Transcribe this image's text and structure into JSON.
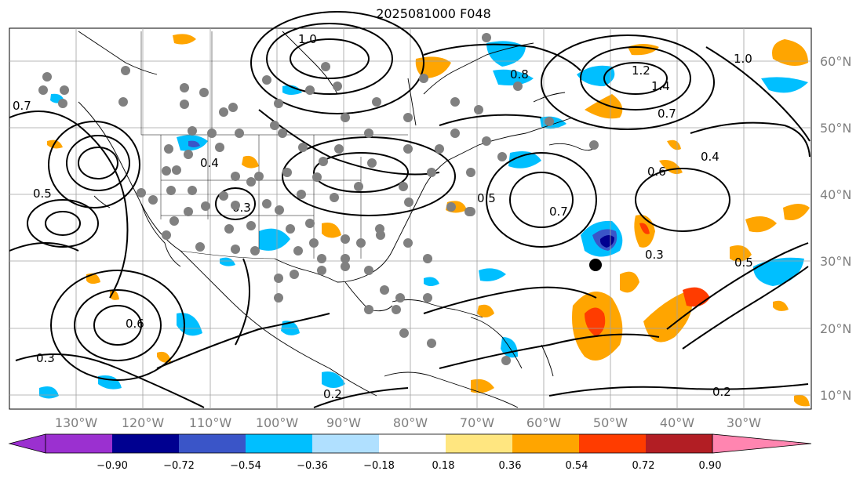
{
  "title": "2025081000 F048",
  "map": {
    "lon_labels": [
      "130°W",
      "120°W",
      "110°W",
      "100°W",
      "90°W",
      "80°W",
      "70°W",
      "60°W",
      "50°W",
      "40°W",
      "30°W"
    ],
    "lat_labels": [
      "60°N",
      "50°N",
      "40°N",
      "30°N",
      "20°N",
      "10°N"
    ],
    "contour_labels": [
      "0.7",
      "0.5",
      "0.3",
      "0.6",
      "0.4",
      "0.2",
      "1.0",
      "0.8",
      "1.2",
      "0.4",
      "0.6",
      "0.7",
      "0.5",
      "0.3",
      "0.2",
      "0.7",
      "1.0",
      "1.4",
      "0.3",
      "0.5"
    ]
  },
  "colorbar": {
    "ticks": [
      "−0.90",
      "−0.72",
      "−0.54",
      "−0.36",
      "−0.18",
      "0.18",
      "0.36",
      "0.54",
      "0.72",
      "0.90"
    ],
    "colors": [
      "#9b30d0",
      "#000090",
      "#3a55c8",
      "#00bfff",
      "#b0e0ff",
      "#ffffff",
      "#ffe680",
      "#ffa500",
      "#ff3c00",
      "#b21e24",
      "#ff85b0"
    ]
  },
  "marker": {
    "label": "storm-center"
  }
}
